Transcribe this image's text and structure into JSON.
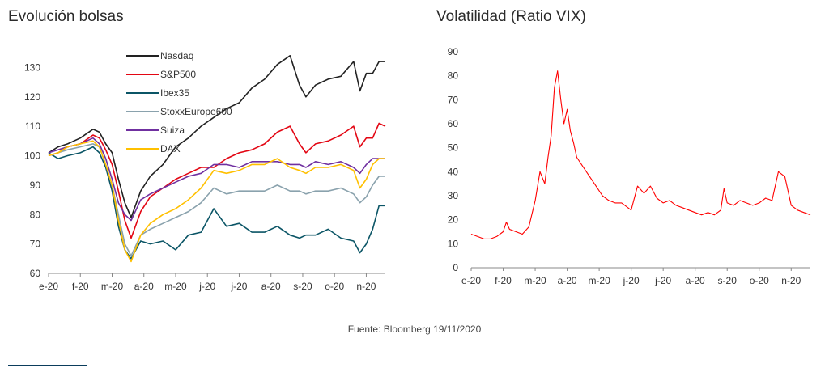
{
  "source": "Fuente: Bloomberg  19/11/2020",
  "colors": {
    "Nasdaq": "#222222",
    "S&P500": "#e30613",
    "Ibex35": "#0b5566",
    "StoxxEurope600": "#8aa2ad",
    "Suiza": "#7030a0",
    "DAX": "#ffc000",
    "VIX": "#ff0000"
  },
  "chart_data": [
    {
      "type": "line",
      "title": "Evolución bolsas",
      "x_tick_labels": [
        "e-20",
        "f-20",
        "m-20",
        "a-20",
        "m-20",
        "j-20",
        "j-20",
        "a-20",
        "s-20",
        "o-20",
        "n-20"
      ],
      "x_domain_months": [
        0,
        10.6
      ],
      "ylim": [
        60,
        140
      ],
      "y_ticks": [
        60,
        70,
        80,
        90,
        100,
        110,
        120,
        130
      ],
      "legend_position": "top-center",
      "series": [
        {
          "name": "Nasdaq",
          "x": [
            0,
            0.3,
            0.6,
            1.0,
            1.4,
            1.6,
            1.8,
            2.0,
            2.2,
            2.4,
            2.6,
            2.9,
            3.2,
            3.6,
            4.0,
            4.4,
            4.8,
            5.2,
            5.6,
            6.0,
            6.4,
            6.8,
            7.2,
            7.6,
            7.9,
            8.1,
            8.4,
            8.8,
            9.2,
            9.6,
            9.8,
            10.0,
            10.2,
            10.4,
            10.6
          ],
          "values": [
            101,
            103,
            104,
            106,
            109,
            108,
            104,
            101,
            92,
            84,
            79,
            88,
            93,
            97,
            103,
            106,
            110,
            113,
            116,
            118,
            123,
            126,
            131,
            134,
            124,
            120,
            124,
            126,
            127,
            132,
            122,
            128,
            128,
            132,
            132
          ]
        },
        {
          "name": "S&P500",
          "x": [
            0,
            0.3,
            0.6,
            1.0,
            1.4,
            1.6,
            1.8,
            2.0,
            2.2,
            2.4,
            2.6,
            2.9,
            3.2,
            3.6,
            4.0,
            4.4,
            4.8,
            5.2,
            5.6,
            6.0,
            6.4,
            6.8,
            7.2,
            7.6,
            7.9,
            8.1,
            8.4,
            8.8,
            9.2,
            9.6,
            9.8,
            10.0,
            10.2,
            10.4,
            10.6
          ],
          "values": [
            100,
            101,
            103,
            104,
            107,
            106,
            102,
            97,
            88,
            78,
            72,
            81,
            86,
            89,
            92,
            94,
            96,
            96,
            99,
            101,
            102,
            104,
            108,
            110,
            104,
            101,
            104,
            105,
            107,
            110,
            103,
            106,
            106,
            111,
            110
          ]
        },
        {
          "name": "Ibex35",
          "x": [
            0,
            0.3,
            0.6,
            1.0,
            1.4,
            1.6,
            1.8,
            2.0,
            2.2,
            2.4,
            2.6,
            2.9,
            3.2,
            3.6,
            4.0,
            4.4,
            4.8,
            5.2,
            5.6,
            6.0,
            6.4,
            6.8,
            7.2,
            7.6,
            7.9,
            8.1,
            8.4,
            8.8,
            9.2,
            9.6,
            9.8,
            10.0,
            10.2,
            10.4,
            10.6
          ],
          "values": [
            101,
            99,
            100,
            101,
            103,
            101,
            96,
            88,
            76,
            68,
            65,
            71,
            70,
            71,
            68,
            73,
            74,
            82,
            76,
            77,
            74,
            74,
            76,
            73,
            72,
            73,
            73,
            75,
            72,
            71,
            67,
            70,
            75,
            83,
            83
          ]
        },
        {
          "name": "StoxxEurope600",
          "x": [
            0,
            0.3,
            0.6,
            1.0,
            1.4,
            1.6,
            1.8,
            2.0,
            2.2,
            2.4,
            2.6,
            2.9,
            3.2,
            3.6,
            4.0,
            4.4,
            4.8,
            5.2,
            5.6,
            6.0,
            6.4,
            6.8,
            7.2,
            7.6,
            7.9,
            8.1,
            8.4,
            8.8,
            9.2,
            9.6,
            9.8,
            10.0,
            10.2,
            10.4,
            10.6
          ],
          "values": [
            100,
            101,
            102,
            103,
            104,
            103,
            97,
            90,
            80,
            70,
            66,
            73,
            75,
            77,
            79,
            81,
            84,
            89,
            87,
            88,
            88,
            88,
            90,
            88,
            88,
            87,
            88,
            88,
            89,
            87,
            84,
            86,
            90,
            93,
            93
          ]
        },
        {
          "name": "Suiza",
          "x": [
            0,
            0.3,
            0.6,
            1.0,
            1.4,
            1.6,
            1.8,
            2.0,
            2.2,
            2.4,
            2.6,
            2.9,
            3.2,
            3.6,
            4.0,
            4.4,
            4.8,
            5.2,
            5.6,
            6.0,
            6.4,
            6.8,
            7.2,
            7.6,
            7.9,
            8.1,
            8.4,
            8.8,
            9.2,
            9.6,
            9.8,
            10.0,
            10.2,
            10.4,
            10.6
          ],
          "values": [
            101,
            102,
            103,
            104,
            106,
            104,
            99,
            92,
            84,
            80,
            78,
            85,
            87,
            89,
            91,
            93,
            94,
            97,
            97,
            96,
            98,
            98,
            98,
            97,
            97,
            96,
            98,
            97,
            98,
            96,
            94,
            97,
            99,
            99,
            99
          ]
        },
        {
          "name": "DAX",
          "x": [
            0,
            0.3,
            0.6,
            1.0,
            1.4,
            1.6,
            1.8,
            2.0,
            2.2,
            2.4,
            2.6,
            2.9,
            3.2,
            3.6,
            4.0,
            4.4,
            4.8,
            5.2,
            5.6,
            6.0,
            6.4,
            6.8,
            7.2,
            7.6,
            7.9,
            8.1,
            8.4,
            8.8,
            9.2,
            9.6,
            9.8,
            10.0,
            10.2,
            10.4,
            10.6
          ],
          "values": [
            100,
            101,
            103,
            104,
            105,
            103,
            97,
            90,
            78,
            68,
            64,
            73,
            77,
            80,
            82,
            85,
            89,
            95,
            94,
            95,
            97,
            97,
            99,
            96,
            95,
            94,
            96,
            96,
            97,
            95,
            89,
            92,
            97,
            99,
            99
          ]
        }
      ]
    },
    {
      "type": "line",
      "title": "Volatilidad (Ratio VIX)",
      "x_tick_labels": [
        "e-20",
        "f-20",
        "m-20",
        "a-20",
        "m-20",
        "j-20",
        "j-20",
        "a-20",
        "s-20",
        "o-20",
        "n-20"
      ],
      "x_domain_months": [
        0,
        10.6
      ],
      "ylim": [
        0,
        90
      ],
      "y_ticks": [
        0,
        10,
        20,
        30,
        40,
        50,
        60,
        70,
        80,
        90
      ],
      "series": [
        {
          "name": "VIX",
          "x": [
            0,
            0.2,
            0.4,
            0.6,
            0.8,
            1.0,
            1.1,
            1.2,
            1.4,
            1.6,
            1.8,
            2.0,
            2.15,
            2.3,
            2.4,
            2.5,
            2.6,
            2.7,
            2.8,
            2.9,
            3.0,
            3.1,
            3.2,
            3.3,
            3.5,
            3.7,
            3.9,
            4.1,
            4.3,
            4.5,
            4.7,
            5.0,
            5.2,
            5.4,
            5.6,
            5.8,
            6.0,
            6.2,
            6.4,
            6.6,
            6.8,
            7.0,
            7.2,
            7.4,
            7.6,
            7.8,
            7.9,
            8.0,
            8.2,
            8.4,
            8.6,
            8.8,
            9.0,
            9.2,
            9.4,
            9.6,
            9.8,
            10.0,
            10.2,
            10.4,
            10.6
          ],
          "values": [
            14,
            13,
            12,
            12,
            13,
            15,
            19,
            16,
            15,
            14,
            17,
            28,
            40,
            35,
            46,
            55,
            75,
            82,
            70,
            60,
            66,
            57,
            52,
            46,
            42,
            38,
            34,
            30,
            28,
            27,
            27,
            24,
            34,
            31,
            34,
            29,
            27,
            28,
            26,
            25,
            24,
            23,
            22,
            23,
            22,
            24,
            33,
            27,
            26,
            28,
            27,
            26,
            27,
            29,
            28,
            40,
            38,
            26,
            24,
            23,
            22
          ]
        }
      ]
    }
  ]
}
